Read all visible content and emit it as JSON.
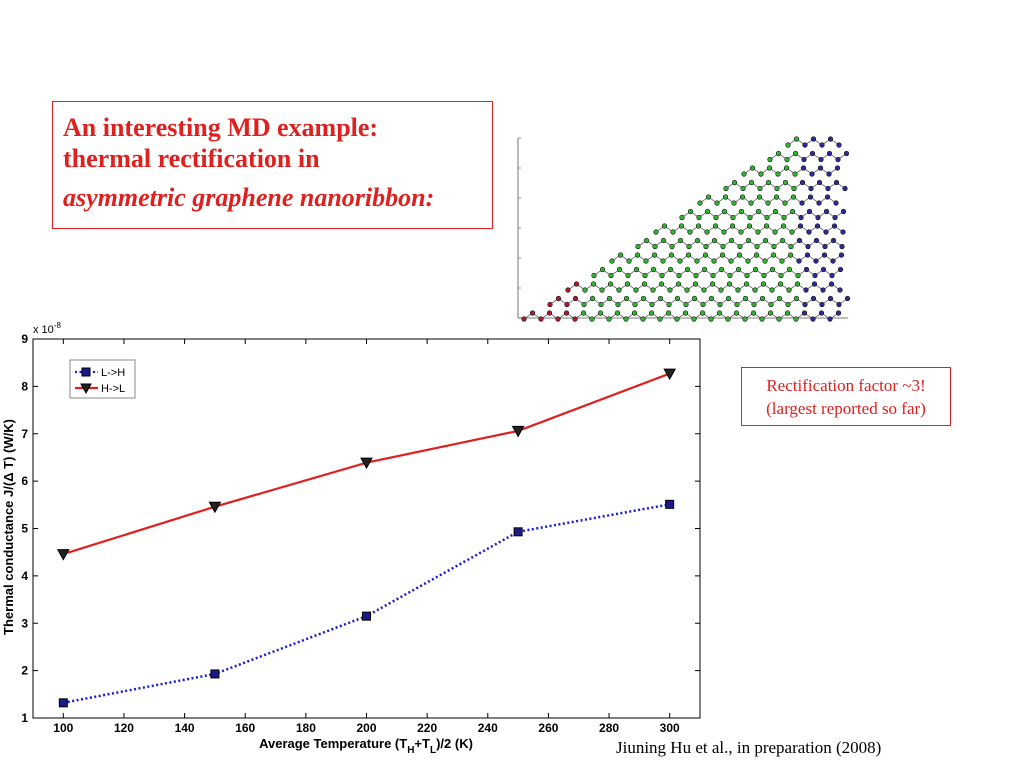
{
  "title_box": {
    "line1": "An interesting MD example:",
    "line2": "thermal rectification in",
    "line3": "asymmetric graphene nanoribbon:"
  },
  "note": {
    "line1": "Rectification factor ~3!",
    "line2": "(largest reported so far)"
  },
  "citation": "Jiuning Hu et al., in preparation (2008)",
  "ribbon_image": {
    "region_colors": {
      "left": "#b0192b",
      "middle": "#2fb52f",
      "right": "#2b2b9a"
    }
  },
  "chart_data": {
    "type": "line",
    "x": [
      100,
      150,
      200,
      250,
      300
    ],
    "series": [
      {
        "name": "L->H",
        "values": [
          1.32,
          1.93,
          3.15,
          4.93,
          5.51
        ],
        "color": "#1a1ad6",
        "line": "dotted",
        "marker": "square"
      },
      {
        "name": "H->L",
        "values": [
          4.46,
          5.46,
          6.39,
          7.06,
          8.27
        ],
        "color": "#e0201f",
        "line": "solid",
        "marker": "triangle-down"
      }
    ],
    "xlabel": "Average Temperature (T_H+T_L)/2 (K)",
    "ylabel": "Thermal conductance J/(Δ T) (W/K)",
    "y_multiplier": "x 10",
    "y_exponent": "-8",
    "xlim": [
      90,
      310
    ],
    "ylim": [
      1,
      9
    ],
    "xticks": [
      "100",
      "120",
      "140",
      "160",
      "180",
      "200",
      "220",
      "240",
      "260",
      "280",
      "300"
    ],
    "yticks": [
      "1",
      "2",
      "3",
      "4",
      "5",
      "6",
      "7",
      "8",
      "9"
    ],
    "legend": "top-left",
    "grid": false
  }
}
